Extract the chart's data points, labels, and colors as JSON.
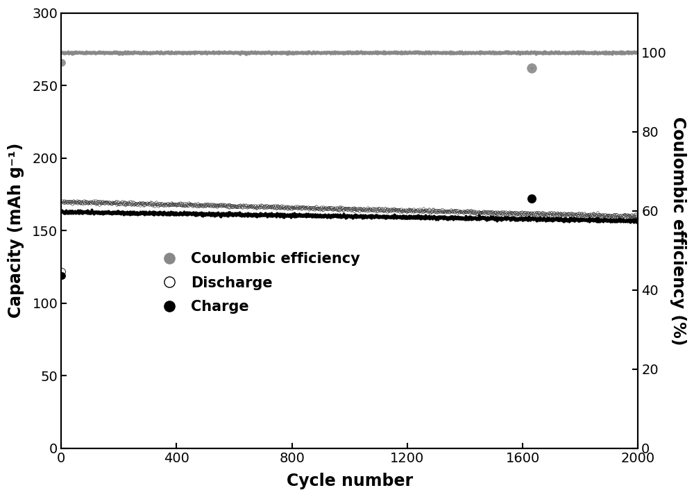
{
  "xlabel": "Cycle number",
  "ylabel_left": "Capacity (mAh g⁻¹)",
  "ylabel_right": "Coulombic efficiency (%)",
  "xlim": [
    0,
    2000
  ],
  "ylim_left": [
    0,
    300
  ],
  "ylim_right": [
    0,
    110
  ],
  "xticks": [
    0,
    400,
    800,
    1200,
    1600,
    2000
  ],
  "yticks_left": [
    0,
    50,
    100,
    150,
    200,
    250,
    300
  ],
  "yticks_right": [
    0,
    20,
    40,
    60,
    80,
    100
  ],
  "n_cycles": 2000,
  "discharge_start": 170,
  "discharge_end": 160,
  "charge_start": 163,
  "charge_end": 157,
  "first_discharge": 122,
  "first_charge": 119,
  "ce_dip_cycle": 1630,
  "ce_dip_value": 96.0,
  "charge_spike_cycle": 1630,
  "charge_spike_value": 172,
  "discharge_color": "#ffffff",
  "discharge_edge_color": "#000000",
  "charge_color": "#000000",
  "ce_color": "#888888",
  "marker_size_small": 2.5,
  "marker_size_large": 8,
  "axis_linewidth": 1.5,
  "legend_fontsize": 15,
  "label_fontsize": 17,
  "tick_fontsize": 14
}
